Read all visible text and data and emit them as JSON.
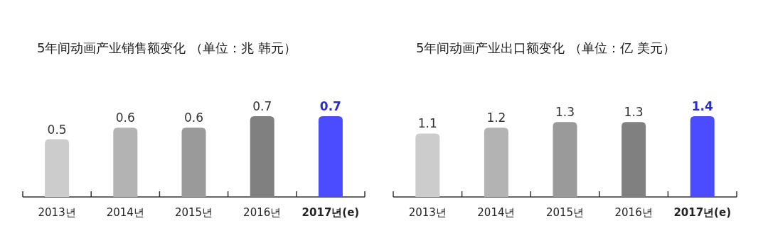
{
  "chart_data": [
    {
      "type": "bar",
      "title": "5年间动画产业销售额变化 （单位：兆 韩元）",
      "categories": [
        "2013년",
        "2014년",
        "2015년",
        "2016년",
        "2017년(e)"
      ],
      "values": [
        0.5,
        0.6,
        0.6,
        0.7,
        0.7
      ],
      "colors": [
        "#cccccc",
        "#b3b3b3",
        "#9a9a9a",
        "#808080",
        "#4b4bff"
      ],
      "data_labels": true
    },
    {
      "type": "bar",
      "title": "5年间动画产业出口额变化 （单位：亿 美元）",
      "categories": [
        "2013년",
        "2014년",
        "2015년",
        "2016년",
        "2017년(e)"
      ],
      "values": [
        1.1,
        1.2,
        1.3,
        1.3,
        1.4
      ],
      "colors": [
        "#cccccc",
        "#b3b3b3",
        "#9a9a9a",
        "#808080",
        "#4b4bff"
      ],
      "data_labels": true
    }
  ]
}
